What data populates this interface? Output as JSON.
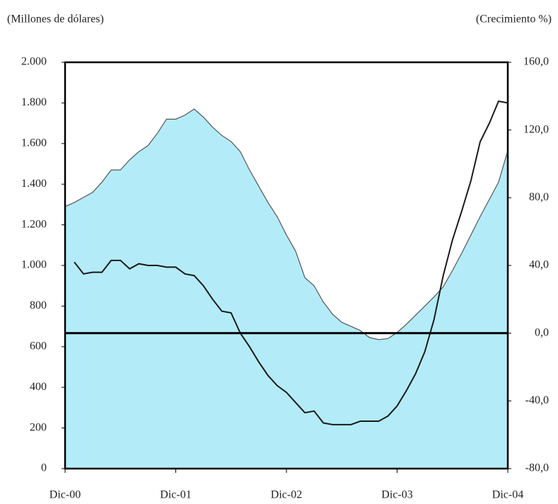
{
  "chart_data": {
    "type": "area-line",
    "y_label": "(Millones de dólares)",
    "y2_label": "(Crecimiento %)",
    "categories": [
      "Dic-00",
      null,
      null,
      null,
      null,
      null,
      null,
      null,
      null,
      null,
      null,
      null,
      "Dic-01",
      null,
      null,
      null,
      null,
      null,
      null,
      null,
      null,
      null,
      null,
      null,
      "Dic-02",
      null,
      null,
      null,
      null,
      null,
      null,
      null,
      null,
      null,
      null,
      null,
      "Dic-03",
      null,
      null,
      null,
      null,
      null,
      null,
      null,
      null,
      null,
      null,
      null,
      "Dic-04"
    ],
    "series": [
      {
        "type": "area",
        "color": "#b3ecf8",
        "values": [
          1290,
          1310,
          1335,
          1360,
          1410,
          1470,
          1470,
          1520,
          1560,
          1590,
          1650,
          1720,
          1720,
          1740,
          1770,
          1730,
          1680,
          1640,
          1610,
          1560,
          1470,
          1390,
          1310,
          1240,
          1150,
          1070,
          940,
          900,
          820,
          760,
          720,
          700,
          680,
          645,
          635,
          640,
          670,
          710,
          755,
          800,
          845,
          895,
          975,
          1060,
          1150,
          1240,
          1325,
          1410,
          1565
        ]
      },
      {
        "type": "line",
        "axis": "y2",
        "color": "#1a1a1a",
        "values": [
          null,
          42,
          35,
          36,
          36,
          43,
          43,
          38,
          41,
          40,
          40,
          39,
          39,
          35,
          34,
          28,
          20,
          13,
          12,
          0,
          -8,
          -17,
          -25,
          -31,
          -35,
          -41,
          -47,
          -46,
          -53,
          -54,
          -54,
          -54,
          -52,
          -52,
          -52,
          -49,
          -43,
          -34,
          -24,
          -11,
          8,
          34,
          55,
          72,
          90,
          113,
          124,
          137,
          136
        ]
      }
    ],
    "ylim": [
      0,
      2000
    ],
    "yticks": [
      0,
      200,
      400,
      600,
      800,
      {
        "value": 1000,
        "label": "1.000"
      },
      {
        "value": 1200,
        "label": "1.200"
      },
      {
        "value": 1400,
        "label": "1.400"
      },
      {
        "value": 1600,
        "label": "1.600"
      },
      {
        "value": 1800,
        "label": "1.800"
      },
      {
        "value": 2000,
        "label": "2.000"
      }
    ],
    "y2lim": [
      -80,
      160
    ],
    "y2ticks": [
      {
        "value": -80,
        "label": "-80,0"
      },
      {
        "value": -40,
        "label": "-40,0"
      },
      {
        "value": 0,
        "label": "0,0"
      },
      {
        "value": 40,
        "label": "40,0"
      },
      {
        "value": 80,
        "label": "80,0"
      },
      {
        "value": 120,
        "label": "120,0"
      },
      {
        "value": 160,
        "label": "160,0"
      }
    ],
    "zero_line_y2": true
  }
}
